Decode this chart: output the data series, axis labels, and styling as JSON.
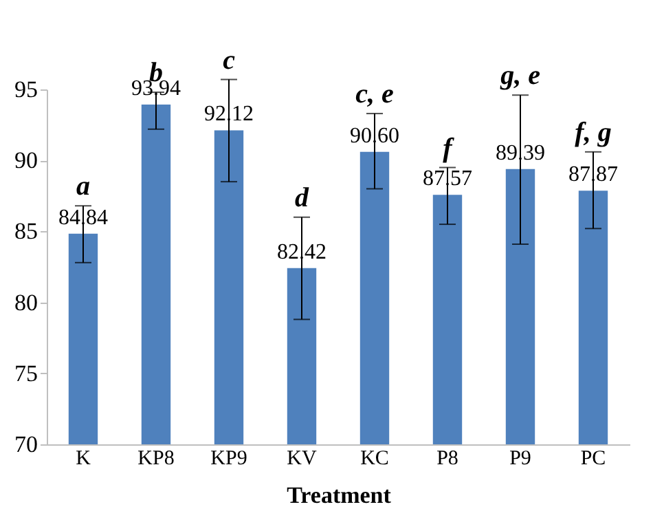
{
  "chart_data": {
    "type": "bar",
    "xlabel": "Treatment",
    "categories": [
      "K",
      "KP8",
      "KP9",
      "KV",
      "KC",
      "P8",
      "P9",
      "PC"
    ],
    "values": [
      84.84,
      93.94,
      92.12,
      82.42,
      90.6,
      87.57,
      89.39,
      87.87
    ],
    "value_labels": [
      "84.84",
      "93.94",
      "92.12",
      "82.42",
      "90.60",
      "87.57",
      "89.39",
      "87.87"
    ],
    "errors": [
      [
        82.8,
        86.8
      ],
      [
        92.2,
        94.8
      ],
      [
        88.5,
        95.7
      ],
      [
        78.8,
        86.0
      ],
      [
        88.0,
        93.3
      ],
      [
        85.5,
        89.5
      ],
      [
        84.1,
        94.6
      ],
      [
        85.2,
        90.6
      ]
    ],
    "color": "#4f81bd",
    "ylim": [
      70,
      95
    ],
    "yticks": [
      70,
      75,
      80,
      85,
      90,
      95
    ],
    "grid": false,
    "annotations": [
      "a",
      "b",
      "c",
      "d",
      "c, e",
      "f",
      "g, e",
      "f, g"
    ]
  }
}
